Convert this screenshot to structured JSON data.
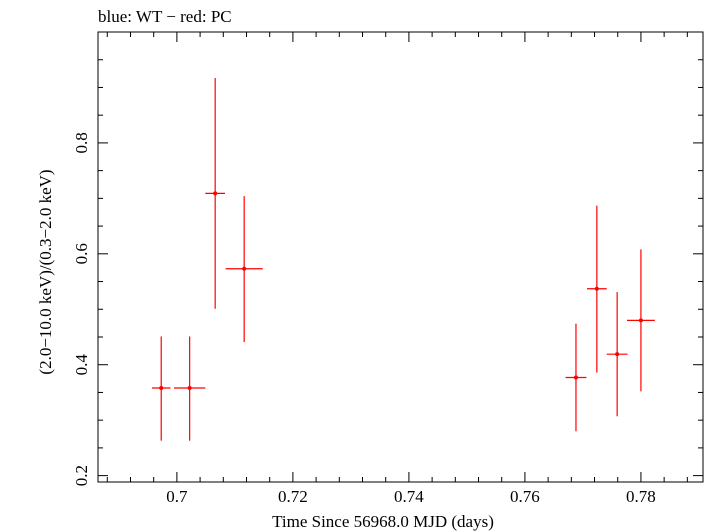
{
  "chart_data": {
    "type": "scatter",
    "title": "blue: WT − red: PC",
    "xlabel": "Time Since 56968.0 MJD (days)",
    "ylabel": "(2.0−10.0 keV)/(0.3−2.0 keV)",
    "xlim": [
      0.6864,
      0.7907
    ],
    "ylim": [
      0.1885,
      1.0
    ],
    "x_ticks": [
      0.7,
      0.72,
      0.74,
      0.76,
      0.78
    ],
    "x_tick_labels": [
      "0.7",
      "0.72",
      "0.74",
      "0.76",
      "0.78"
    ],
    "y_ticks": [
      0.2,
      0.4,
      0.6,
      0.8
    ],
    "y_tick_labels": [
      "0.2",
      "0.4",
      "0.6",
      "0.8"
    ],
    "grid": false,
    "series": [
      {
        "color": "#ff0000",
        "points": [
          {
            "x": 0.6973,
            "y": 0.358,
            "xerr": [
              0.0016,
              0.0016
            ],
            "yerr": [
              0.095,
              0.093
            ]
          },
          {
            "x": 0.7022,
            "y": 0.358,
            "xerr": [
              0.0027,
              0.0027
            ],
            "yerr": [
              0.095,
              0.093
            ]
          },
          {
            "x": 0.7066,
            "y": 0.709,
            "xerr": [
              0.0017,
              0.0017
            ],
            "yerr": [
              0.208,
              0.208
            ]
          },
          {
            "x": 0.7116,
            "y": 0.573,
            "xerr": [
              0.0032,
              0.0032
            ],
            "yerr": [
              0.132,
              0.131
            ]
          },
          {
            "x": 0.7688,
            "y": 0.377,
            "xerr": [
              0.0018,
              0.0018
            ],
            "yerr": [
              0.097,
              0.097
            ]
          },
          {
            "x": 0.7724,
            "y": 0.537,
            "xerr": [
              0.0017,
              0.0017
            ],
            "yerr": [
              0.151,
              0.15
            ]
          },
          {
            "x": 0.7759,
            "y": 0.419,
            "xerr": [
              0.0018,
              0.0018
            ],
            "yerr": [
              0.112,
              0.112
            ]
          },
          {
            "x": 0.78,
            "y": 0.48,
            "xerr": [
              0.0024,
              0.0024
            ],
            "yerr": [
              0.128,
              0.128
            ]
          }
        ]
      }
    ]
  }
}
